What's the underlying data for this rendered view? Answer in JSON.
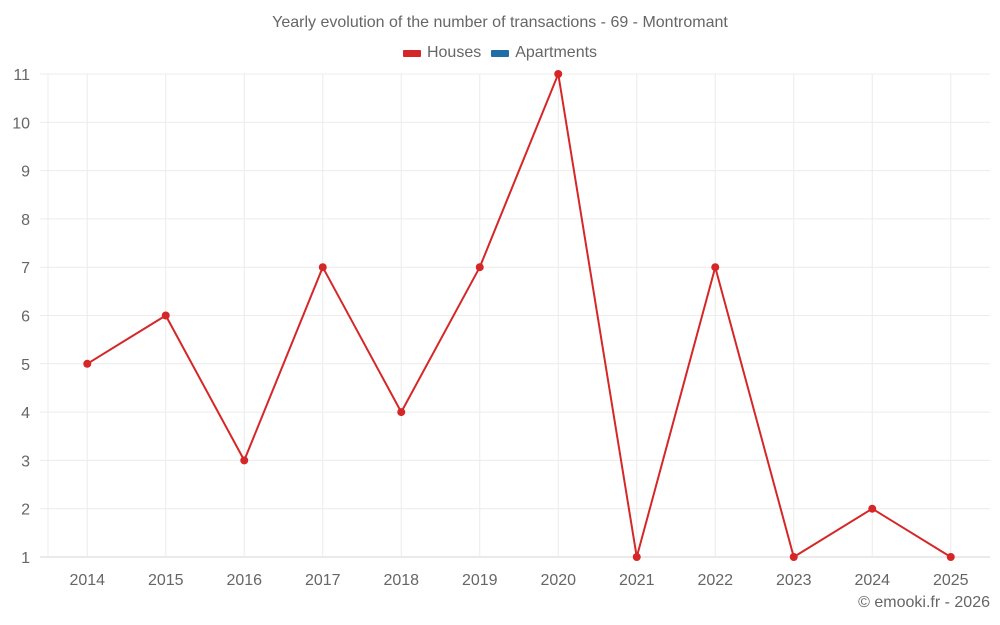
{
  "chart": {
    "title": "Yearly evolution of the number of transactions - 69 - Montromant",
    "credit": "© emooki.fr - 2026",
    "legend": [
      {
        "label": "Houses",
        "color": "#d62728"
      },
      {
        "label": "Apartments",
        "color": "#1f6fa5"
      }
    ]
  },
  "chart_data": {
    "type": "line",
    "title": "Yearly evolution of the number of transactions - 69 - Montromant",
    "xlabel": "",
    "ylabel": "",
    "categories": [
      "2014",
      "2015",
      "2016",
      "2017",
      "2018",
      "2019",
      "2020",
      "2021",
      "2022",
      "2023",
      "2024",
      "2025"
    ],
    "series": [
      {
        "name": "Houses",
        "color": "#d62728",
        "values": [
          5,
          6,
          3,
          7,
          4,
          7,
          11,
          1,
          7,
          1,
          2,
          1
        ]
      },
      {
        "name": "Apartments",
        "color": "#1f6fa5",
        "values": []
      }
    ],
    "yticks": [
      1,
      2,
      3,
      4,
      5,
      6,
      7,
      8,
      9,
      10,
      11
    ],
    "ylim": [
      1,
      11
    ],
    "grid": true,
    "legend_position": "top"
  }
}
